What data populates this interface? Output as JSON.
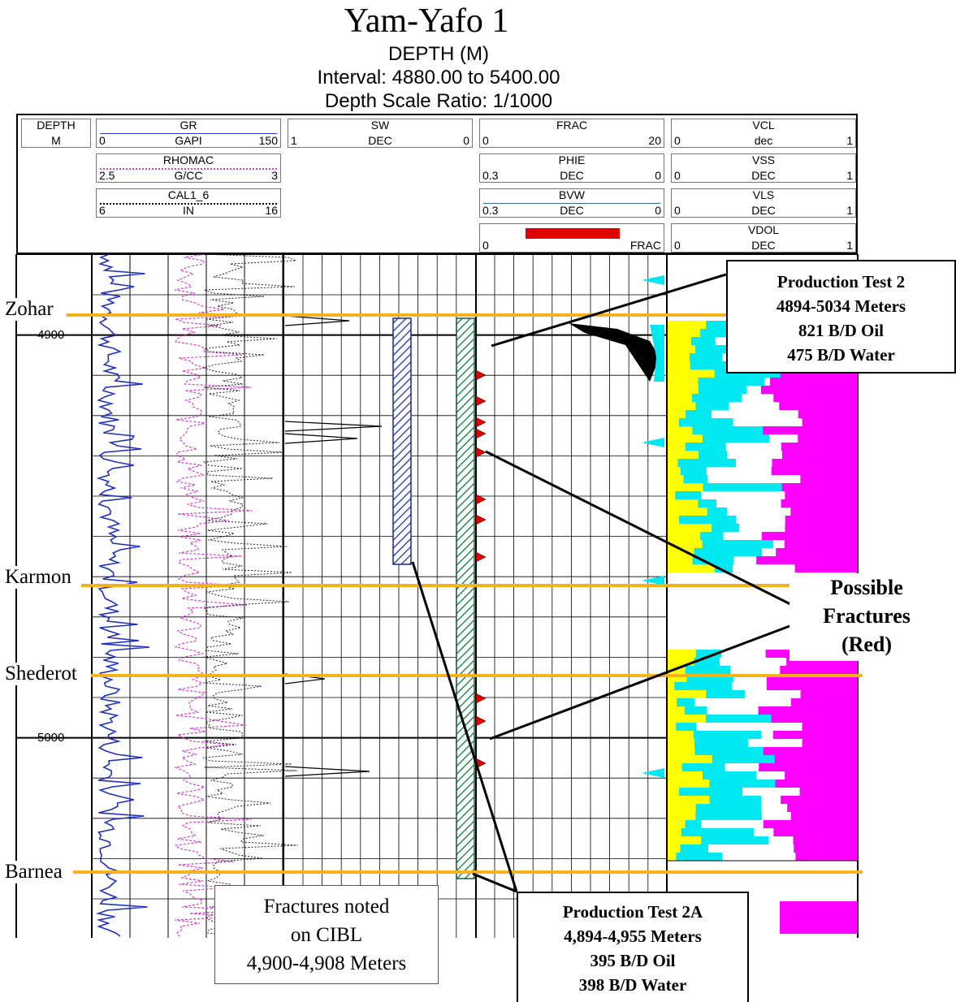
{
  "title": "Yam-Yafo 1",
  "subtitle": {
    "line1": "DEPTH (M)",
    "line2": "Interval:  4880.00  to 5400.00",
    "line3": "Depth Scale Ratio: 1/1000"
  },
  "header": {
    "depth": {
      "name": "DEPTH",
      "unit": "M"
    },
    "gr": {
      "name": "GR",
      "min": "0",
      "unit": "GAPI",
      "max": "150"
    },
    "rhomac": {
      "name": "RHOMAC",
      "min": "2.5",
      "unit": "G/CC",
      "max": "3"
    },
    "cal": {
      "name": "CAL1_6",
      "min": "6",
      "unit": "IN",
      "max": "16"
    },
    "sw": {
      "name": "SW",
      "min": "1",
      "unit": "DEC",
      "max": "0"
    },
    "frac": {
      "name": "FRAC",
      "min": "0",
      "unit": "",
      "max": "20"
    },
    "phie": {
      "name": "PHIE",
      "min": "0.3",
      "unit": "DEC",
      "max": "0"
    },
    "bvw": {
      "name": "BVW",
      "min": "0.3",
      "unit": "DEC",
      "max": "0"
    },
    "frac_fill": {
      "min": "0",
      "unit": "FRAC"
    },
    "vcl": {
      "name": "VCL",
      "min": "0",
      "unit": "dec",
      "max": "1"
    },
    "vss": {
      "name": "VSS",
      "min": "0",
      "unit": "DEC",
      "max": "1"
    },
    "vls": {
      "name": "VLS",
      "min": "0",
      "unit": "DEC",
      "max": "1"
    },
    "vdol": {
      "name": "VDOL",
      "min": "0",
      "unit": "DEC",
      "max": "1"
    }
  },
  "depth_labels": [
    "4900",
    "5000"
  ],
  "formations": [
    "Zohar",
    "Karmon",
    "Shederot",
    "Barnea"
  ],
  "callouts": {
    "pt2": {
      "title": "Production Test 2",
      "depths": "4894-5034 Meters",
      "oil": "821 B/D Oil",
      "water": "475 B/D Water"
    },
    "pt2a": {
      "title": "Production Test 2A",
      "depths": "4,894-4,955 Meters",
      "oil": "395 B/D Oil",
      "water": "398 B/D Water"
    },
    "fractures": {
      "line1": "Possible",
      "line2": "Fractures",
      "line3": "(Red)"
    },
    "cibl": {
      "line1": "Fractures noted",
      "line2": "on CIBL",
      "line3": "4,900-4,908 Meters"
    }
  },
  "colors": {
    "formation_line": "#f5b21b",
    "gr_curve": "#1f2fbf",
    "rhomac_curve": "#d040d0",
    "fracture": "#e00000",
    "cyan": "#00e8f0",
    "yellow": "#ffff00",
    "magenta": "#ff00ff",
    "pt2_hatch": "#3a4fb0",
    "pt2a_hatch": "#2a8a5a"
  }
}
